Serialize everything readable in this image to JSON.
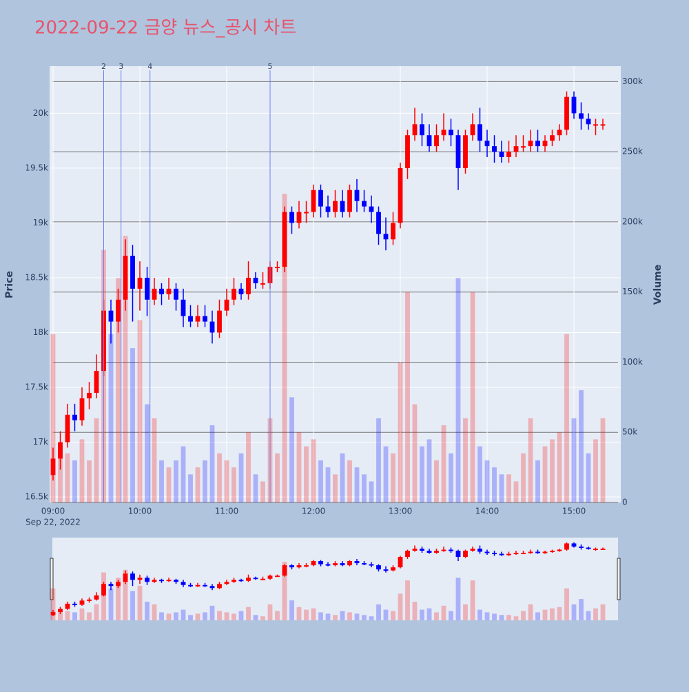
{
  "chart_data": {
    "type": "candlestick",
    "title": "2022-09-22 금양 뉴스_공시 차트",
    "y_title": "Price",
    "y2_title": "Volume",
    "date_label": "Sep 22, 2022",
    "increasing_color": "#ff0000",
    "decreasing_color": "#0000ff",
    "x": [
      "09:00",
      "09:05",
      "09:10",
      "09:15",
      "09:20",
      "09:25",
      "09:30",
      "09:35",
      "09:40",
      "09:45",
      "09:50",
      "09:55",
      "10:00",
      "10:05",
      "10:10",
      "10:15",
      "10:20",
      "10:25",
      "10:30",
      "10:35",
      "10:40",
      "10:45",
      "10:50",
      "10:55",
      "11:00",
      "11:05",
      "11:10",
      "11:15",
      "11:20",
      "11:25",
      "11:30",
      "11:35",
      "11:40",
      "11:45",
      "11:50",
      "11:55",
      "12:00",
      "12:05",
      "12:10",
      "12:15",
      "12:20",
      "12:25",
      "12:30",
      "12:35",
      "12:40",
      "12:45",
      "12:50",
      "12:55",
      "13:00",
      "13:05",
      "13:10",
      "13:15",
      "13:20",
      "13:25",
      "13:30",
      "13:35",
      "13:40",
      "13:45",
      "13:50",
      "13:55",
      "14:00",
      "14:05",
      "14:10",
      "14:15",
      "14:20",
      "14:25",
      "14:30",
      "14:35",
      "14:40",
      "14:45",
      "14:50",
      "14:55",
      "15:00",
      "15:05",
      "15:10",
      "15:15",
      "15:20"
    ],
    "open": [
      16700,
      16850,
      17000,
      17250,
      17200,
      17400,
      17450,
      17650,
      18200,
      18100,
      18300,
      18700,
      18400,
      18500,
      18300,
      18400,
      18350,
      18400,
      18300,
      18150,
      18100,
      18150,
      18100,
      18000,
      18200,
      18300,
      18400,
      18350,
      18500,
      18450,
      18450,
      18600,
      18600,
      19100,
      19000,
      19100,
      19100,
      19300,
      19150,
      19100,
      19200,
      19100,
      19300,
      19200,
      19150,
      19100,
      18900,
      18850,
      19000,
      19500,
      19800,
      19900,
      19800,
      19700,
      19800,
      19850,
      19800,
      19500,
      19800,
      19900,
      19750,
      19700,
      19650,
      19600,
      19650,
      19700,
      19700,
      19750,
      19700,
      19750,
      19800,
      19850,
      20150,
      20000,
      19950,
      19900,
      19900
    ],
    "high": [
      16950,
      17100,
      17350,
      17350,
      17500,
      17550,
      17800,
      18300,
      18300,
      18400,
      18850,
      18800,
      18650,
      18600,
      18500,
      18450,
      18500,
      18450,
      18400,
      18250,
      18250,
      18250,
      18200,
      18300,
      18400,
      18500,
      18450,
      18650,
      18550,
      18550,
      18650,
      18650,
      19150,
      19150,
      19200,
      19200,
      19350,
      19350,
      19250,
      19300,
      19300,
      19350,
      19400,
      19300,
      19250,
      19150,
      19050,
      19100,
      19550,
      19850,
      20050,
      20000,
      19900,
      19900,
      20000,
      19950,
      19850,
      19850,
      20000,
      20050,
      19850,
      19800,
      19750,
      19750,
      19800,
      19800,
      19850,
      19850,
      19800,
      19850,
      19900,
      20200,
      20200,
      20100,
      20000,
      19950,
      19950
    ],
    "low": [
      16650,
      16750,
      16950,
      17100,
      17150,
      17300,
      17400,
      17600,
      17900,
      18000,
      18200,
      18100,
      18200,
      18150,
      18250,
      18250,
      18300,
      18200,
      18050,
      18050,
      18050,
      18050,
      17900,
      17950,
      18150,
      18250,
      18300,
      18300,
      18400,
      18400,
      18400,
      18550,
      18550,
      18900,
      18950,
      19000,
      19050,
      19050,
      19050,
      19050,
      19050,
      19050,
      19100,
      19100,
      19000,
      18800,
      18750,
      18800,
      18950,
      19400,
      19750,
      19700,
      19650,
      19650,
      19750,
      19700,
      19300,
      19450,
      19750,
      19650,
      19600,
      19550,
      19550,
      19550,
      19600,
      19650,
      19650,
      19650,
      19650,
      19700,
      19750,
      19800,
      19950,
      19850,
      19850,
      19800,
      19850
    ],
    "close": [
      16850,
      17000,
      17250,
      17200,
      17400,
      17450,
      17650,
      18200,
      18100,
      18300,
      18700,
      18400,
      18500,
      18300,
      18400,
      18350,
      18400,
      18300,
      18150,
      18100,
      18150,
      18100,
      18000,
      18200,
      18300,
      18400,
      18350,
      18500,
      18450,
      18450,
      18600,
      18600,
      19100,
      19000,
      19100,
      19100,
      19300,
      19150,
      19100,
      19200,
      19100,
      19300,
      19200,
      19150,
      19100,
      18900,
      18850,
      19000,
      19500,
      19800,
      19900,
      19800,
      19700,
      19800,
      19850,
      19800,
      19500,
      19800,
      19900,
      19750,
      19700,
      19650,
      19600,
      19650,
      19700,
      19700,
      19750,
      19700,
      19750,
      19800,
      19850,
      20150,
      20000,
      19950,
      19900,
      19900,
      19900
    ],
    "volume": [
      120000,
      40000,
      35000,
      30000,
      45000,
      30000,
      60000,
      180000,
      120000,
      160000,
      190000,
      110000,
      130000,
      70000,
      60000,
      30000,
      25000,
      30000,
      40000,
      20000,
      25000,
      30000,
      55000,
      35000,
      30000,
      25000,
      35000,
      50000,
      20000,
      15000,
      60000,
      35000,
      220000,
      75000,
      50000,
      40000,
      45000,
      30000,
      25000,
      20000,
      35000,
      30000,
      25000,
      20000,
      15000,
      60000,
      40000,
      35000,
      100000,
      150000,
      70000,
      40000,
      45000,
      30000,
      55000,
      35000,
      160000,
      60000,
      150000,
      40000,
      30000,
      25000,
      20000,
      20000,
      15000,
      35000,
      60000,
      30000,
      40000,
      45000,
      50000,
      120000,
      60000,
      80000,
      35000,
      45000,
      60000
    ],
    "events": [
      {
        "x": "09:35",
        "label": "2"
      },
      {
        "x": "09:47",
        "label": "3"
      },
      {
        "x": "10:07",
        "label": "4"
      },
      {
        "x": "11:30",
        "label": "5"
      }
    ],
    "xlim": [
      "09:00",
      "15:30"
    ],
    "xticks": [
      "09:00",
      "10:00",
      "11:00",
      "12:00",
      "13:00",
      "14:00",
      "15:00"
    ],
    "ylim": [
      16450,
      20430
    ],
    "yticks": [
      {
        "value": 16500,
        "label": "16.5k"
      },
      {
        "value": 17000,
        "label": "17k"
      },
      {
        "value": 17500,
        "label": "17.5k"
      },
      {
        "value": 18000,
        "label": "18k"
      },
      {
        "value": 18500,
        "label": "18.5k"
      },
      {
        "value": 19000,
        "label": "19k"
      },
      {
        "value": 19500,
        "label": "19.5k"
      },
      {
        "value": 20000,
        "label": "20k"
      }
    ],
    "y2lim": [
      0,
      311000
    ],
    "y2ticks": [
      0,
      {
        "value": 50000,
        "label": "50k"
      },
      {
        "value": 100000,
        "label": "100k"
      },
      {
        "value": 150000,
        "label": "150k"
      },
      {
        "value": 200000,
        "label": "200k"
      },
      {
        "value": 250000,
        "label": "250k"
      },
      {
        "value": 300000,
        "label": "300k"
      }
    ],
    "grid": true,
    "range_slider": true
  }
}
